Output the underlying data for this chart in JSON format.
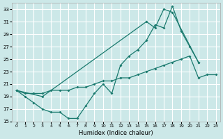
{
  "xlabel": "Humidex (Indice chaleur)",
  "background_color": "#cce8e8",
  "grid_color": "#ffffff",
  "line_color": "#1a7a6e",
  "xlim": [
    -0.5,
    23.5
  ],
  "ylim": [
    15,
    34
  ],
  "yticks": [
    15,
    17,
    19,
    21,
    23,
    25,
    27,
    29,
    31,
    33
  ],
  "xticks": [
    0,
    1,
    2,
    3,
    4,
    5,
    6,
    7,
    8,
    9,
    10,
    11,
    12,
    13,
    14,
    15,
    16,
    17,
    18,
    19,
    20,
    21,
    22,
    23
  ],
  "series1_x": [
    0,
    1,
    2,
    3,
    4,
    5,
    6,
    7,
    8,
    9,
    10,
    11,
    12,
    13,
    14,
    15,
    16,
    17,
    18,
    19,
    20,
    21
  ],
  "series1_y": [
    20.0,
    19.0,
    18.0,
    17.0,
    16.5,
    16.5,
    15.5,
    15.5,
    17.5,
    19.5,
    21.0,
    19.5,
    24.0,
    25.5,
    26.5,
    28.0,
    30.5,
    30.0,
    33.5,
    29.5,
    27.0,
    24.5
  ],
  "series2_x": [
    0,
    1,
    2,
    3,
    4,
    5,
    6,
    7,
    8,
    9,
    10,
    11,
    12,
    13,
    14,
    15,
    16,
    17,
    18,
    19,
    20,
    21,
    22,
    23
  ],
  "series2_y": [
    20.0,
    19.5,
    19.5,
    19.5,
    20.0,
    20.0,
    20.0,
    20.5,
    20.5,
    21.0,
    21.5,
    21.5,
    22.0,
    22.0,
    22.5,
    23.0,
    23.5,
    24.0,
    24.5,
    25.0,
    25.5,
    22.0,
    22.5,
    22.5
  ],
  "series3_x": [
    0,
    3,
    15,
    16,
    17,
    18,
    21
  ],
  "series3_y": [
    20.0,
    19.0,
    31.0,
    30.0,
    33.0,
    32.5,
    24.5
  ]
}
